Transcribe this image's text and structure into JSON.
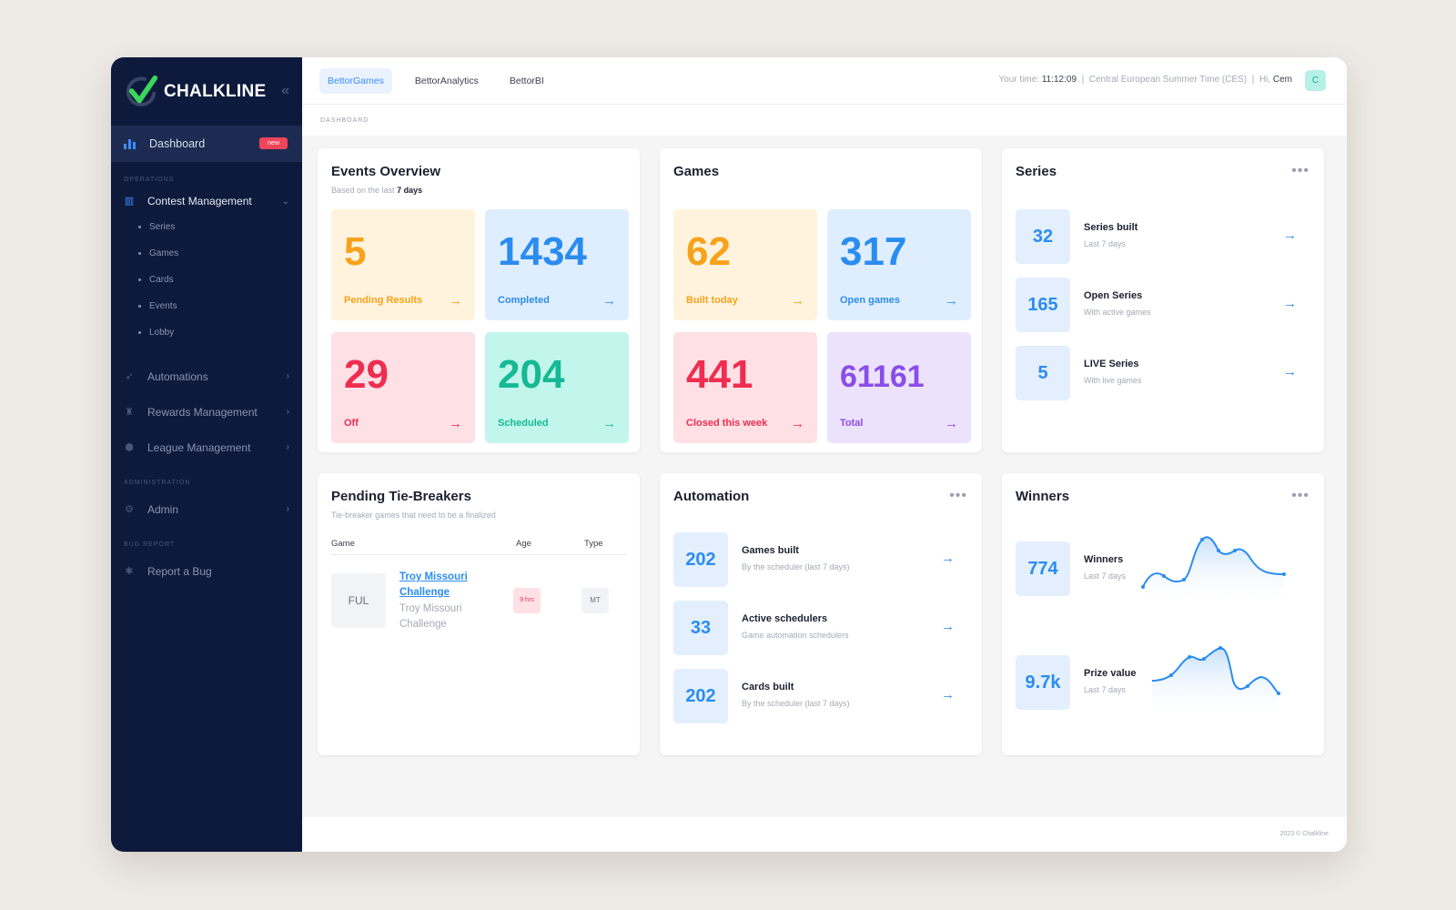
{
  "brand": {
    "name": "CHALKLINE"
  },
  "sidebar": {
    "dashboard": {
      "label": "Dashboard",
      "badge": "new"
    },
    "sections": {
      "operations": "OPERATIONS",
      "administration": "ADMINISTRATION",
      "bug_report": "BUG REPORT"
    },
    "contest": {
      "label": "Contest Management",
      "children": [
        "Series",
        "Games",
        "Cards",
        "Events",
        "Lobby"
      ]
    },
    "items": [
      "Automations",
      "Rewards Management",
      "League Management"
    ],
    "admin": "Admin",
    "report": "Report a Bug"
  },
  "topbar": {
    "tabs": [
      "BettorGames",
      "BettorAnalytics",
      "BettorBI"
    ],
    "time_label": "Your time:",
    "time_value": "11:12:09",
    "timezone": "Central European Summer Time (CES)",
    "greeting": "Hi,",
    "user": "Cem",
    "avatar": "C"
  },
  "breadcrumb": "DASHBOARD",
  "events": {
    "title": "Events Overview",
    "subtitle": "Based on the last",
    "period": "7 days",
    "tiles": [
      {
        "value": "5",
        "label": "Pending Results"
      },
      {
        "value": "1434",
        "label": "Completed"
      },
      {
        "value": "29",
        "label": "Off"
      },
      {
        "value": "204",
        "label": "Scheduled"
      }
    ]
  },
  "games": {
    "title": "Games",
    "tiles": [
      {
        "value": "62",
        "label": "Built today"
      },
      {
        "value": "317",
        "label": "Open games"
      },
      {
        "value": "441",
        "label": "Closed this week"
      },
      {
        "value": "61161",
        "label": "Total"
      }
    ]
  },
  "series": {
    "title": "Series",
    "rows": [
      {
        "value": "32",
        "title": "Series built",
        "sub": "Last 7 days"
      },
      {
        "value": "165",
        "title": "Open Series",
        "sub": "With active games"
      },
      {
        "value": "5",
        "title": "LIVE Series",
        "sub": "With live games"
      }
    ]
  },
  "tiebreakers": {
    "title": "Pending Tie-Breakers",
    "subtitle": "Tie-breaker games that need to be a finalized",
    "columns": [
      "Game",
      "Age",
      "Type"
    ],
    "row": {
      "code": "FUL",
      "name": "Troy Missouri Challenge",
      "sub": "Troy Missouri Challenge",
      "age": "9 hrs",
      "type": "MT"
    }
  },
  "automation": {
    "title": "Automation",
    "rows": [
      {
        "value": "202",
        "title": "Games built",
        "sub": "By the scheduler (last 7 days)"
      },
      {
        "value": "33",
        "title": "Active schedulers",
        "sub": "Game automation schedulers"
      },
      {
        "value": "202",
        "title": "Cards built",
        "sub": "By the scheduler (last 7 days)"
      }
    ]
  },
  "winners": {
    "title": "Winners",
    "rows": [
      {
        "value": "774",
        "title": "Winners",
        "sub": "Last 7 days"
      },
      {
        "value": "9.7k",
        "title": "Prize value",
        "sub": "Last 7 days"
      }
    ]
  },
  "footer": "2023 © Chalkline",
  "colors": {
    "sidebar": "#0d1a3c",
    "accent": "#2b8cf0",
    "danger": "#ee2d50"
  }
}
